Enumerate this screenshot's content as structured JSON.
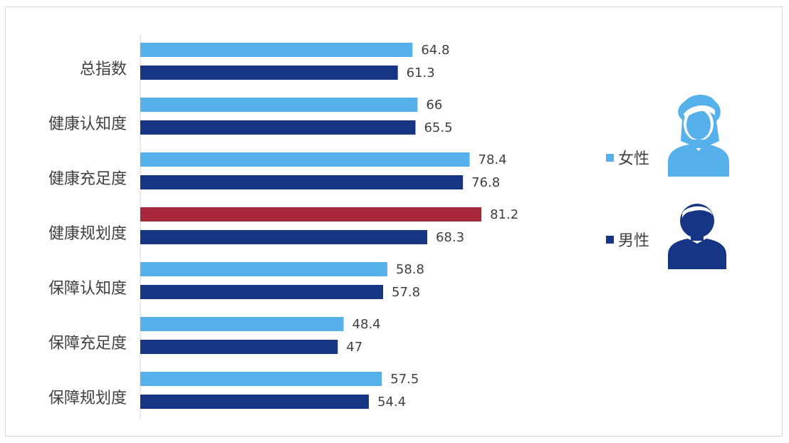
{
  "chart_data": {
    "type": "bar",
    "orientation": "horizontal",
    "categories": [
      "总指数",
      "健康认知度",
      "健康充足度",
      "健康规划度",
      "保障认知度",
      "保障充足度",
      "保障规划度"
    ],
    "series": [
      {
        "name": "女性",
        "values": [
          64.8,
          66,
          78.4,
          81.2,
          58.8,
          48.4,
          57.5
        ],
        "color": "#56b0ea"
      },
      {
        "name": "男性",
        "values": [
          61.3,
          65.5,
          76.8,
          68.3,
          57.8,
          47,
          54.4
        ],
        "color": "#163585"
      }
    ],
    "highlight": {
      "series": 0,
      "category": 3,
      "color": "#a7283b"
    },
    "value_labels": {
      "女性": [
        "64.8",
        "66",
        "78.4",
        "81.2",
        "58.8",
        "48.4",
        "57.5"
      ],
      "男性": [
        "61.3",
        "65.5",
        "76.8",
        "68.3",
        "57.8",
        "47",
        "54.4"
      ]
    },
    "xlim": [
      0,
      100
    ],
    "grid": false,
    "legend_position": "right"
  },
  "legend": {
    "female": {
      "label": "女性",
      "icon": "female-person-icon",
      "color": "#56b0ea"
    },
    "male": {
      "label": "男性",
      "icon": "male-person-icon",
      "color": "#163585"
    }
  }
}
